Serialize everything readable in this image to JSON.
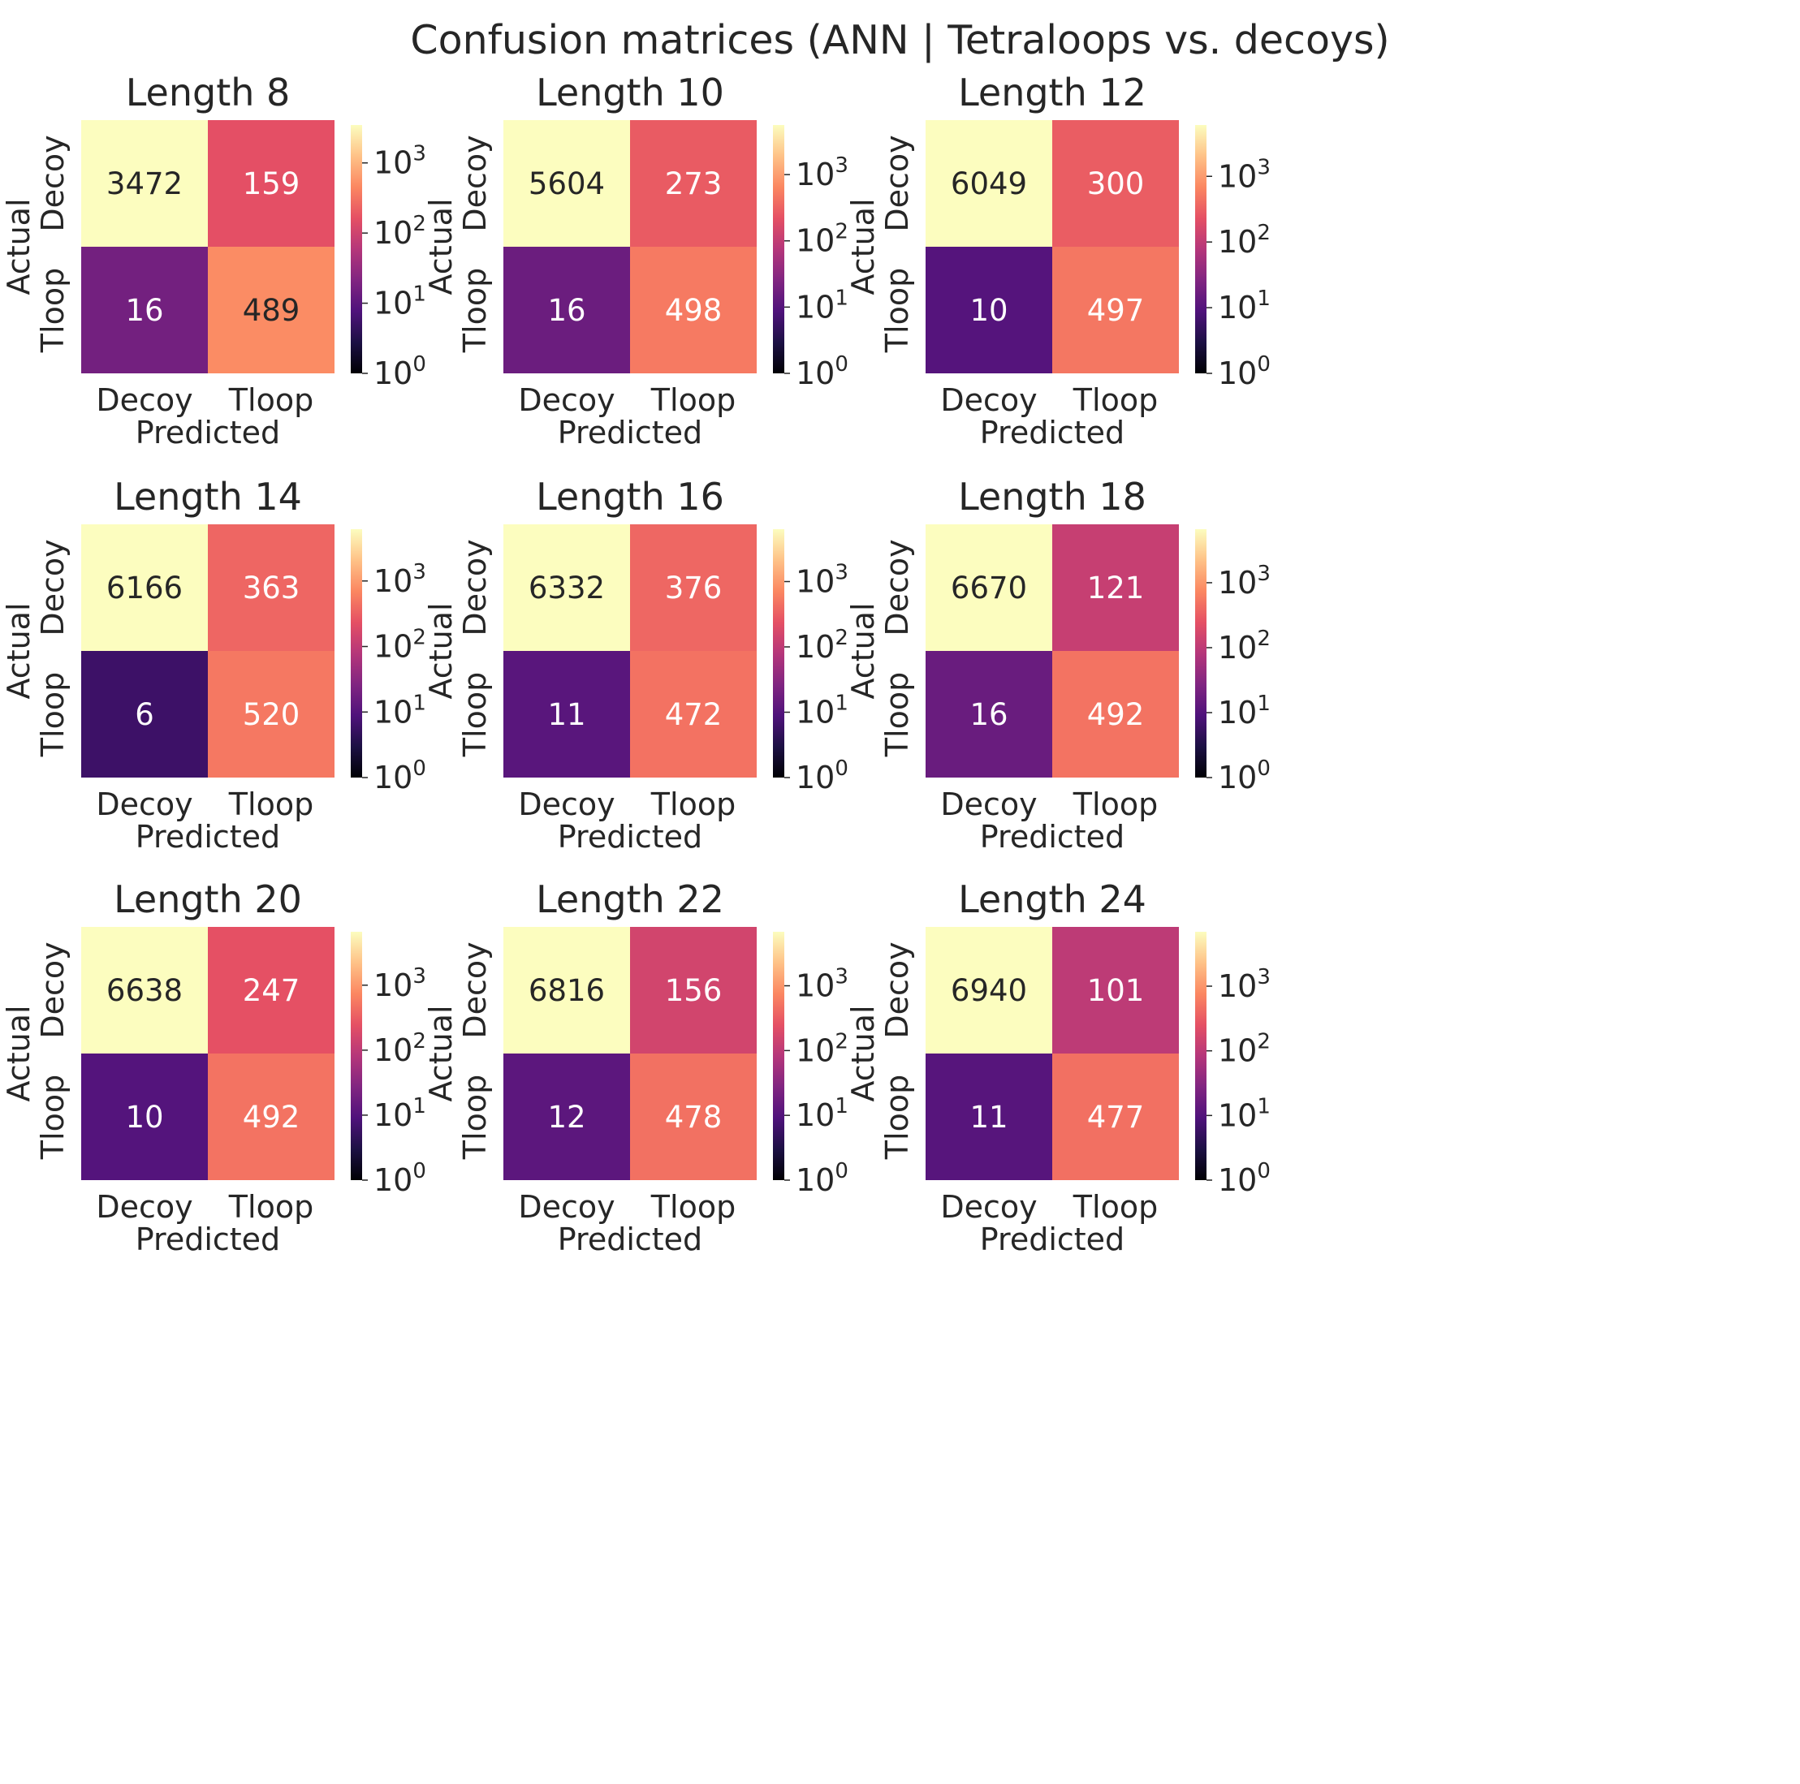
{
  "title": "Confusion matrices (ANN | Tetraloops vs. decoys)",
  "chart_data": [
    {
      "type": "heatmap",
      "title": "Length 8",
      "x_categories": [
        "Decoy",
        "Tloop"
      ],
      "y_categories": [
        "Decoy",
        "Tloop"
      ],
      "xlabel": "Predicted",
      "ylabel": "Actual",
      "values": [
        [
          3472,
          159
        ],
        [
          16,
          489
        ]
      ],
      "colorbar": {
        "scale": "log",
        "ticks": [
          "10^0",
          "10^1",
          "10^2",
          "10^3"
        ],
        "min": 1,
        "max": 3472
      }
    },
    {
      "type": "heatmap",
      "title": "Length 10",
      "x_categories": [
        "Decoy",
        "Tloop"
      ],
      "y_categories": [
        "Decoy",
        "Tloop"
      ],
      "xlabel": "Predicted",
      "ylabel": "Actual",
      "values": [
        [
          5604,
          273
        ],
        [
          16,
          498
        ]
      ],
      "colorbar": {
        "scale": "log",
        "ticks": [
          "10^0",
          "10^1",
          "10^2",
          "10^3"
        ],
        "min": 1,
        "max": 5604
      }
    },
    {
      "type": "heatmap",
      "title": "Length 12",
      "x_categories": [
        "Decoy",
        "Tloop"
      ],
      "y_categories": [
        "Decoy",
        "Tloop"
      ],
      "xlabel": "Predicted",
      "ylabel": "Actual",
      "values": [
        [
          6049,
          300
        ],
        [
          10,
          497
        ]
      ],
      "colorbar": {
        "scale": "log",
        "ticks": [
          "10^0",
          "10^1",
          "10^2",
          "10^3"
        ],
        "min": 1,
        "max": 6049
      }
    },
    {
      "type": "heatmap",
      "title": "Length 14",
      "x_categories": [
        "Decoy",
        "Tloop"
      ],
      "y_categories": [
        "Decoy",
        "Tloop"
      ],
      "xlabel": "Predicted",
      "ylabel": "Actual",
      "values": [
        [
          6166,
          363
        ],
        [
          6,
          520
        ]
      ],
      "colorbar": {
        "scale": "log",
        "ticks": [
          "10^0",
          "10^1",
          "10^2",
          "10^3"
        ],
        "min": 1,
        "max": 6166
      }
    },
    {
      "type": "heatmap",
      "title": "Length 16",
      "x_categories": [
        "Decoy",
        "Tloop"
      ],
      "y_categories": [
        "Decoy",
        "Tloop"
      ],
      "xlabel": "Predicted",
      "ylabel": "Actual",
      "values": [
        [
          6332,
          376
        ],
        [
          11,
          472
        ]
      ],
      "colorbar": {
        "scale": "log",
        "ticks": [
          "10^0",
          "10^1",
          "10^2",
          "10^3"
        ],
        "min": 1,
        "max": 6332
      }
    },
    {
      "type": "heatmap",
      "title": "Length 18",
      "x_categories": [
        "Decoy",
        "Tloop"
      ],
      "y_categories": [
        "Decoy",
        "Tloop"
      ],
      "xlabel": "Predicted",
      "ylabel": "Actual",
      "values": [
        [
          6670,
          121
        ],
        [
          16,
          492
        ]
      ],
      "colorbar": {
        "scale": "log",
        "ticks": [
          "10^0",
          "10^1",
          "10^2",
          "10^3"
        ],
        "min": 1,
        "max": 6670
      }
    },
    {
      "type": "heatmap",
      "title": "Length 20",
      "x_categories": [
        "Decoy",
        "Tloop"
      ],
      "y_categories": [
        "Decoy",
        "Tloop"
      ],
      "xlabel": "Predicted",
      "ylabel": "Actual",
      "values": [
        [
          6638,
          247
        ],
        [
          10,
          492
        ]
      ],
      "colorbar": {
        "scale": "log",
        "ticks": [
          "10^0",
          "10^1",
          "10^2",
          "10^3"
        ],
        "min": 1,
        "max": 6638
      }
    },
    {
      "type": "heatmap",
      "title": "Length 22",
      "x_categories": [
        "Decoy",
        "Tloop"
      ],
      "y_categories": [
        "Decoy",
        "Tloop"
      ],
      "xlabel": "Predicted",
      "ylabel": "Actual",
      "values": [
        [
          6816,
          156
        ],
        [
          12,
          478
        ]
      ],
      "colorbar": {
        "scale": "log",
        "ticks": [
          "10^0",
          "10^1",
          "10^2",
          "10^3"
        ],
        "min": 1,
        "max": 6816
      }
    },
    {
      "type": "heatmap",
      "title": "Length 24",
      "x_categories": [
        "Decoy",
        "Tloop"
      ],
      "y_categories": [
        "Decoy",
        "Tloop"
      ],
      "xlabel": "Predicted",
      "ylabel": "Actual",
      "values": [
        [
          6940,
          101
        ],
        [
          11,
          477
        ]
      ],
      "colorbar": {
        "scale": "log",
        "ticks": [
          "10^0",
          "10^1",
          "10^2",
          "10^3"
        ],
        "min": 1,
        "max": 6940
      }
    }
  ]
}
